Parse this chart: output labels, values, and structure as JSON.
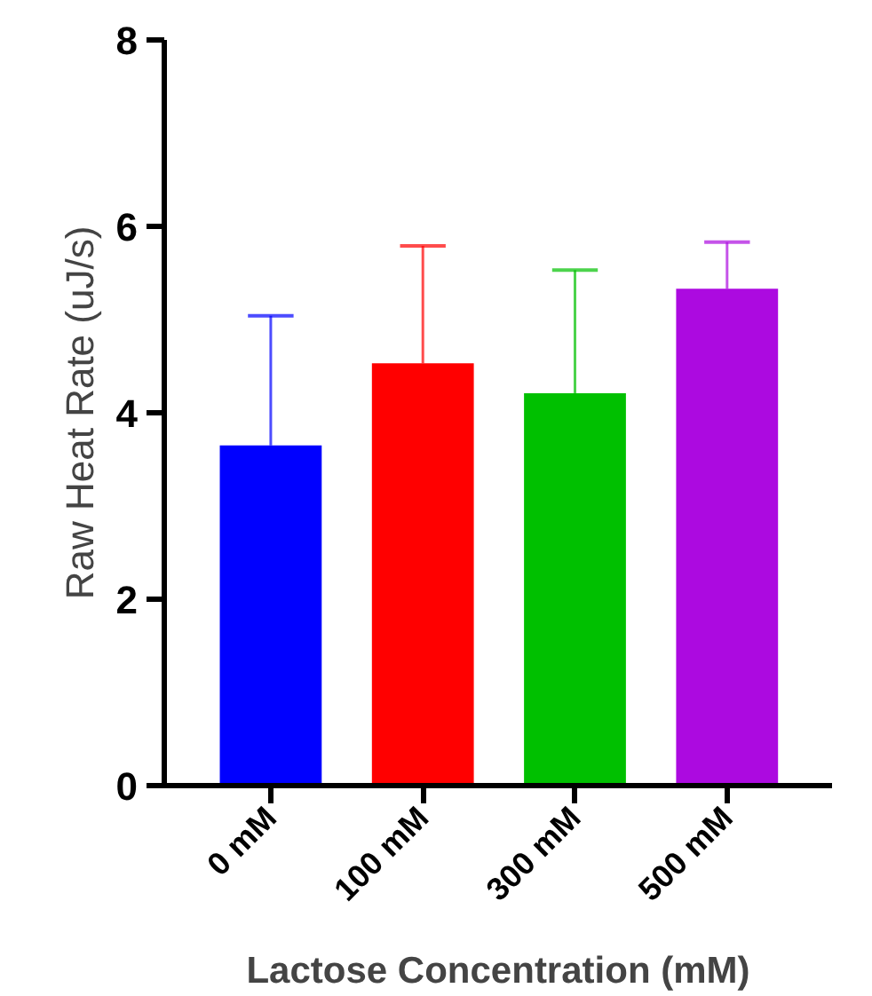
{
  "chart_data": {
    "type": "bar",
    "xlabel": "Lactose Concentration (mM)",
    "ylabel": "Raw Heat Rate (uJ/s)",
    "categories": [
      "0 mM",
      "100 mM",
      "300 mM",
      "500 mM"
    ],
    "values": [
      3.65,
      4.53,
      4.21,
      5.33
    ],
    "colors": [
      "#0000ff",
      "#ff0000",
      "#00c000",
      "#ac0ae0"
    ],
    "errors": [
      [
        3.65,
        5.04
      ],
      [
        4.53,
        5.79
      ],
      [
        4.21,
        5.53
      ],
      [
        5.33,
        5.83
      ]
    ],
    "ylim": [
      0,
      8
    ],
    "yticks": [
      0,
      2,
      4,
      6,
      8
    ],
    "grid": false
  }
}
